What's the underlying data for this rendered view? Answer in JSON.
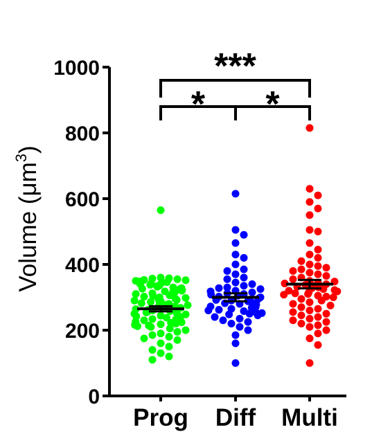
{
  "chart_data": {
    "type": "scatter",
    "title": "",
    "xlabel": "",
    "ylabel": "Volume (μm",
    "ylabel_superscript": "3",
    "ylabel_suffix": ")",
    "ylim": [
      0,
      1000
    ],
    "yticks": [
      0,
      200,
      400,
      600,
      800,
      1000
    ],
    "categories": [
      "Prog",
      "Diff",
      "Multi"
    ],
    "series": [
      {
        "category": "Prog",
        "color": "#00ff00",
        "mean": 265,
        "sem": 8,
        "values": [
          565,
          360,
          358,
          357,
          355,
          353,
          352,
          350,
          348,
          346,
          344,
          342,
          340,
          338,
          336,
          334,
          332,
          330,
          328,
          326,
          324,
          322,
          320,
          318,
          316,
          314,
          312,
          310,
          308,
          306,
          304,
          302,
          300,
          298,
          296,
          294,
          292,
          290,
          288,
          286,
          284,
          282,
          280,
          278,
          276,
          274,
          272,
          270,
          268,
          266,
          264,
          262,
          260,
          258,
          256,
          254,
          252,
          250,
          248,
          246,
          244,
          242,
          240,
          238,
          236,
          234,
          232,
          230,
          228,
          226,
          224,
          222,
          220,
          218,
          216,
          214,
          212,
          210,
          205,
          200,
          195,
          190,
          185,
          180,
          175,
          170,
          160,
          150,
          140,
          130,
          120,
          110
        ]
      },
      {
        "category": "Diff",
        "color": "#0000ff",
        "mean": 300,
        "sem": 12,
        "values": [
          615,
          505,
          490,
          465,
          430,
          420,
          400,
          385,
          380,
          370,
          360,
          355,
          345,
          340,
          335,
          330,
          328,
          325,
          320,
          318,
          315,
          312,
          310,
          308,
          305,
          302,
          300,
          298,
          295,
          292,
          290,
          288,
          285,
          282,
          280,
          278,
          275,
          272,
          270,
          268,
          265,
          262,
          260,
          258,
          255,
          252,
          250,
          248,
          245,
          240,
          235,
          230,
          225,
          220,
          210,
          200,
          185,
          160,
          100
        ]
      },
      {
        "category": "Multi",
        "color": "#ff0000",
        "mean": 340,
        "sem": 13,
        "values": [
          815,
          630,
          610,
          590,
          570,
          550,
          505,
          500,
          465,
          445,
          430,
          420,
          410,
          400,
          395,
          390,
          385,
          380,
          375,
          370,
          365,
          360,
          355,
          350,
          348,
          345,
          342,
          340,
          338,
          335,
          332,
          330,
          328,
          325,
          322,
          320,
          318,
          315,
          312,
          310,
          308,
          305,
          302,
          300,
          295,
          290,
          285,
          280,
          275,
          270,
          265,
          260,
          255,
          250,
          245,
          240,
          235,
          230,
          225,
          220,
          215,
          210,
          200,
          190,
          175,
          155,
          100
        ]
      }
    ],
    "annotations": [
      {
        "from": "Prog",
        "to": "Multi",
        "label": "***",
        "y": 960
      },
      {
        "from": "Prog",
        "to": "Diff",
        "label": "*",
        "y": 880
      },
      {
        "from": "Diff",
        "to": "Multi",
        "label": "*",
        "y": 880
      }
    ]
  }
}
